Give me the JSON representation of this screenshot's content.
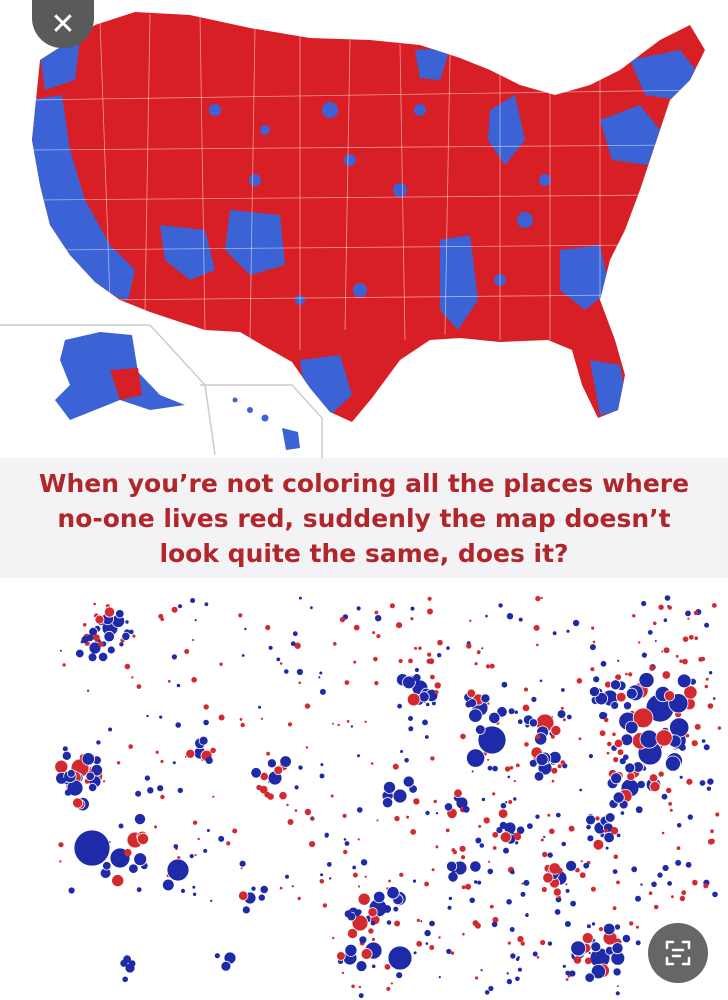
{
  "caption": {
    "line1": "When you’re not coloring all the places where",
    "line2": "no-one lives red, suddenly the map doesn’t",
    "line3": "look quite the same, does it?"
  },
  "colors": {
    "red": "#d81f26",
    "blue": "#3b63d6",
    "dark_blue": "#1f2aa8",
    "bubble_red": "#d42a2f",
    "caption_text": "#b0262b",
    "caption_band": "#f3f3f5"
  },
  "icons": {
    "close": "close-icon",
    "lens": "lens-icon"
  }
}
